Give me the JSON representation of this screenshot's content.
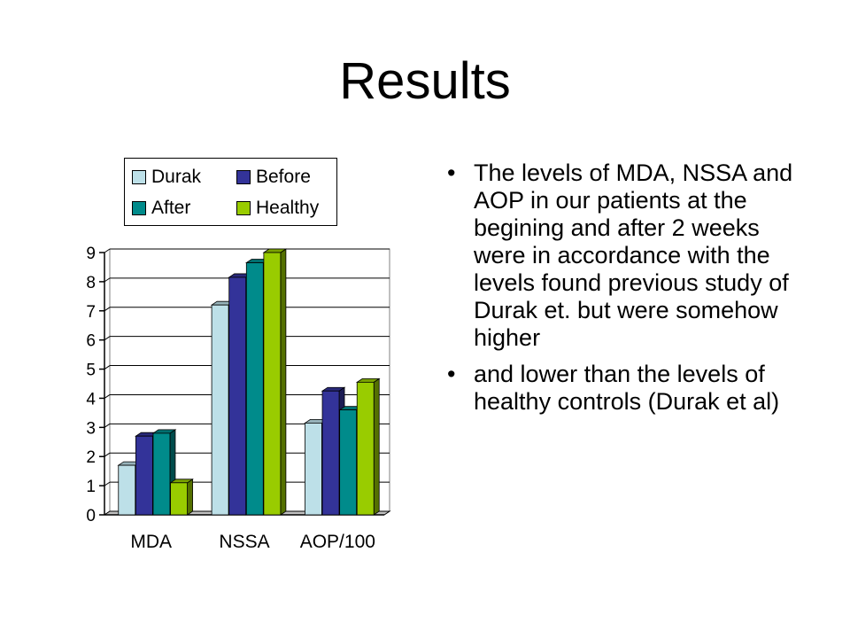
{
  "slide": {
    "title": "Results",
    "bullets": [
      "The levels of MDA, NSSA and AOP in our patients at the begining and after 2 weeks were in accordance with the levels found previous study of Durak et. but were somehow higher",
      "and lower than the levels of healthy controls (Durak et al)"
    ],
    "bullet_symbol": "•"
  },
  "chart_data": {
    "type": "bar",
    "categories": [
      "MDA",
      "NSSA",
      "AOP/100"
    ],
    "series": [
      {
        "name": "Durak",
        "color": "#BDE0E8",
        "values": [
          1.7,
          7.2,
          3.15
        ]
      },
      {
        "name": "Before",
        "color": "#333399",
        "values": [
          2.7,
          8.15,
          4.25
        ]
      },
      {
        "name": "After",
        "color": "#008B8B",
        "values": [
          2.8,
          8.65,
          3.6
        ]
      },
      {
        "name": "Healthy",
        "color": "#99CC00",
        "values": [
          1.1,
          9.0,
          4.55
        ]
      }
    ],
    "yticks": [
      "0",
      "1",
      "2",
      "3",
      "4",
      "5",
      "6",
      "7",
      "8",
      "9"
    ],
    "ylim": [
      0,
      9
    ],
    "grid": true,
    "legend_position": "top"
  }
}
